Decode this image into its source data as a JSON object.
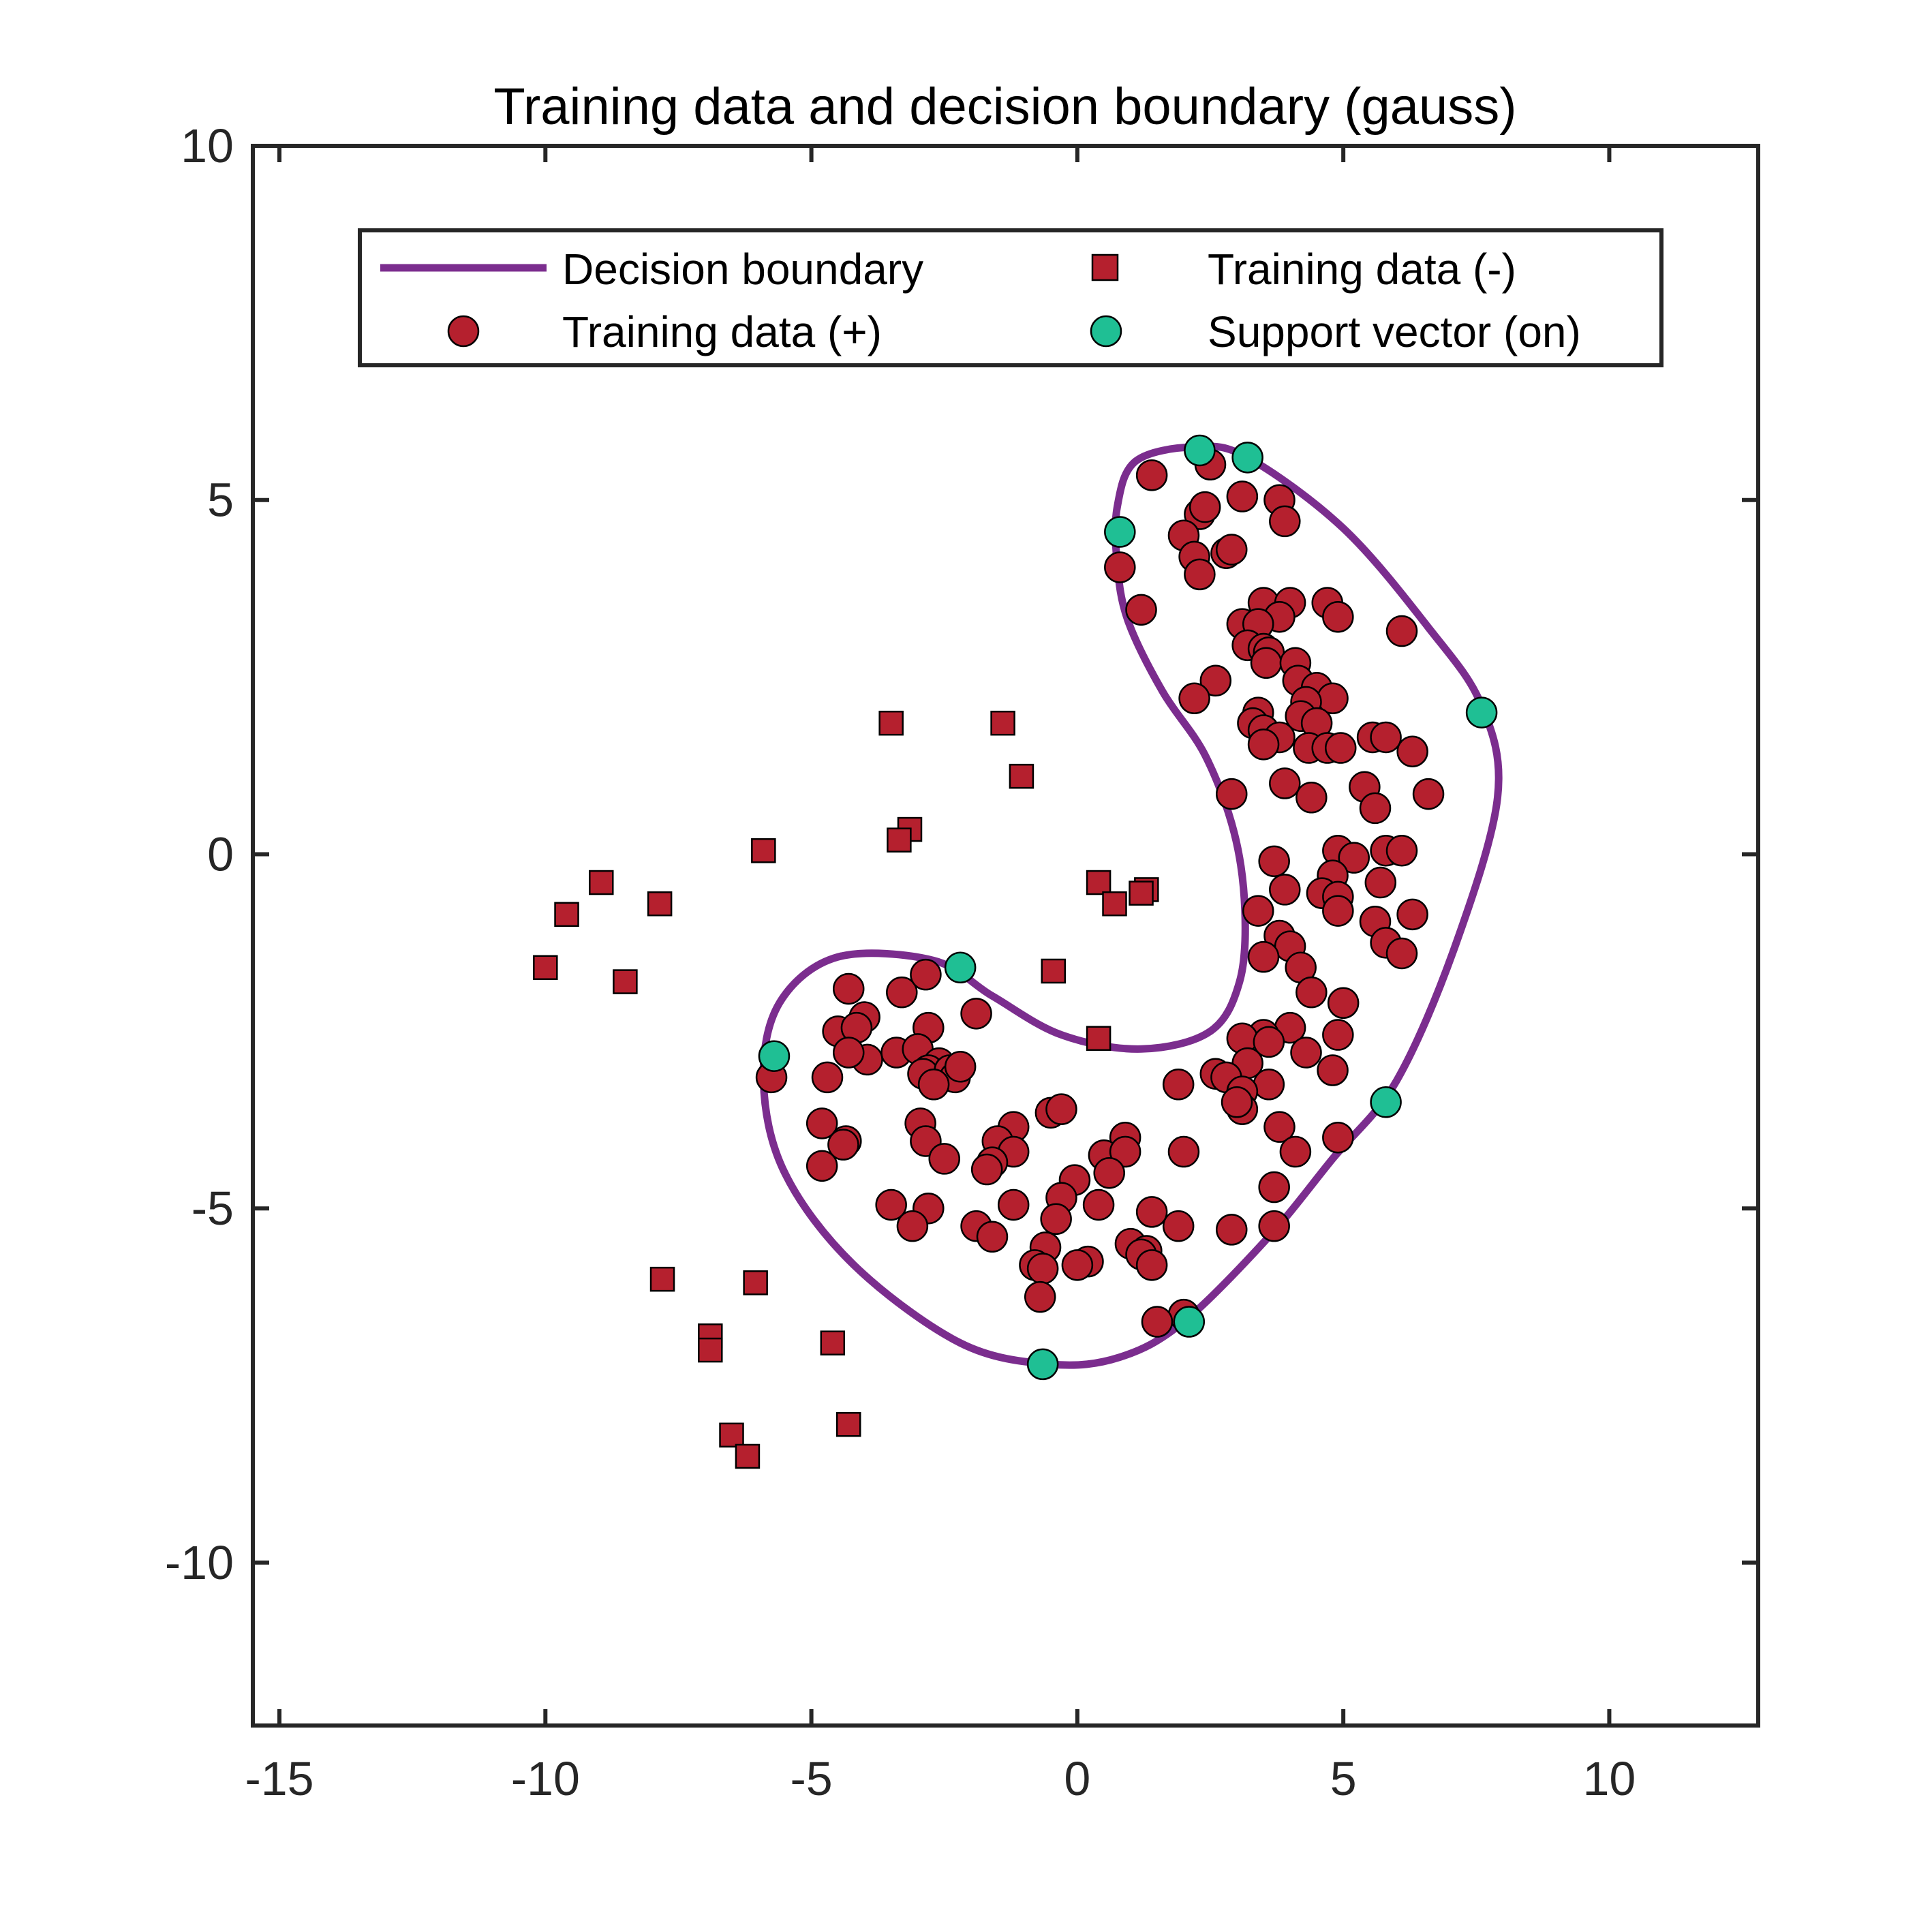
{
  "chart_data": {
    "type": "scatter",
    "title": "Training data and decision boundary (gauss)",
    "xlabel": "",
    "ylabel": "",
    "xlim": [
      -15.5,
      12.8
    ],
    "ylim": [
      -12.3,
      10
    ],
    "xticks": [
      -15,
      -10,
      -5,
      0,
      5,
      10
    ],
    "yticks": [
      -10,
      -5,
      0,
      5,
      10
    ],
    "grid": false,
    "legend_position": "top-center",
    "colors": {
      "boundary": "#7B2D8E",
      "positive": "#B5202E",
      "support": "#1FBF94",
      "negative": "#B5202E",
      "axis": "#262626",
      "text": "#262626"
    },
    "legend": {
      "boundary": "Decision boundary",
      "negative": "Training data (-)",
      "positive": "Training data (+)",
      "support": "Support vector (on)"
    },
    "series": [
      {
        "name": "Decision boundary",
        "type": "line",
        "points": [
          [
            2.2,
            5.75
          ],
          [
            1.1,
            5.55
          ],
          [
            0.75,
            4.9
          ],
          [
            0.75,
            4.1
          ],
          [
            0.95,
            3.3
          ],
          [
            1.6,
            2.3
          ],
          [
            2.4,
            1.4
          ],
          [
            2.95,
            0.3
          ],
          [
            3.15,
            -0.8
          ],
          [
            3.05,
            -1.8
          ],
          [
            2.5,
            -2.5
          ],
          [
            1.2,
            -2.75
          ],
          [
            -0.3,
            -2.55
          ],
          [
            -1.6,
            -2.0
          ],
          [
            -2.7,
            -1.5
          ],
          [
            -4.5,
            -1.45
          ],
          [
            -5.6,
            -2.1
          ],
          [
            -5.9,
            -3.2
          ],
          [
            -5.5,
            -4.5
          ],
          [
            -4.2,
            -5.8
          ],
          [
            -2.2,
            -6.9
          ],
          [
            -0.5,
            -7.2
          ],
          [
            0.8,
            -7.1
          ],
          [
            2.0,
            -6.6
          ],
          [
            3.6,
            -5.4
          ],
          [
            4.8,
            -4.3
          ],
          [
            6.0,
            -3.2
          ],
          [
            7.1,
            -1.3
          ],
          [
            7.9,
            0.8
          ],
          [
            7.6,
            2.1
          ],
          [
            6.6,
            3.2
          ],
          [
            5.0,
            4.6
          ],
          [
            3.2,
            5.6
          ],
          [
            2.2,
            5.75
          ]
        ]
      },
      {
        "name": "Training data (+)",
        "type": "scatter",
        "marker": "circle",
        "points": [
          [
            1.4,
            5.35
          ],
          [
            2.5,
            5.5
          ],
          [
            3.1,
            5.05
          ],
          [
            3.8,
            5.0
          ],
          [
            3.9,
            4.7
          ],
          [
            2.3,
            4.8
          ],
          [
            2.4,
            4.9
          ],
          [
            2.0,
            4.5
          ],
          [
            2.2,
            4.2
          ],
          [
            2.3,
            3.95
          ],
          [
            2.8,
            4.25
          ],
          [
            2.9,
            4.3
          ],
          [
            0.8,
            4.05
          ],
          [
            1.2,
            3.45
          ],
          [
            3.5,
            3.55
          ],
          [
            4.0,
            3.55
          ],
          [
            4.7,
            3.55
          ],
          [
            3.8,
            3.35
          ],
          [
            4.9,
            3.35
          ],
          [
            3.1,
            3.25
          ],
          [
            3.4,
            3.25
          ],
          [
            6.1,
            3.15
          ],
          [
            3.2,
            2.95
          ],
          [
            3.5,
            2.9
          ],
          [
            3.6,
            2.85
          ],
          [
            3.55,
            2.7
          ],
          [
            4.1,
            2.7
          ],
          [
            2.6,
            2.45
          ],
          [
            4.15,
            2.45
          ],
          [
            4.5,
            2.35
          ],
          [
            2.2,
            2.2
          ],
          [
            4.8,
            2.2
          ],
          [
            4.3,
            2.15
          ],
          [
            3.4,
            2.0
          ],
          [
            4.2,
            1.95
          ],
          [
            3.3,
            1.85
          ],
          [
            4.5,
            1.85
          ],
          [
            3.5,
            1.75
          ],
          [
            5.55,
            1.65
          ],
          [
            3.8,
            1.65
          ],
          [
            5.8,
            1.65
          ],
          [
            4.35,
            1.5
          ],
          [
            4.7,
            1.5
          ],
          [
            4.95,
            1.5
          ],
          [
            3.5,
            1.55
          ],
          [
            6.3,
            1.45
          ],
          [
            3.9,
            1.0
          ],
          [
            5.4,
            0.95
          ],
          [
            2.9,
            0.85
          ],
          [
            6.6,
            0.85
          ],
          [
            4.4,
            0.8
          ],
          [
            5.6,
            0.65
          ],
          [
            4.9,
            0.05
          ],
          [
            5.8,
            0.05
          ],
          [
            6.1,
            0.05
          ],
          [
            5.2,
            -0.05
          ],
          [
            3.7,
            -0.1
          ],
          [
            4.8,
            -0.3
          ],
          [
            5.7,
            -0.4
          ],
          [
            3.9,
            -0.5
          ],
          [
            4.6,
            -0.55
          ],
          [
            4.9,
            -0.6
          ],
          [
            3.4,
            -0.8
          ],
          [
            4.9,
            -0.8
          ],
          [
            6.3,
            -0.85
          ],
          [
            5.6,
            -0.95
          ],
          [
            3.8,
            -1.15
          ],
          [
            4.0,
            -1.3
          ],
          [
            5.8,
            -1.25
          ],
          [
            6.1,
            -1.4
          ],
          [
            3.5,
            -1.45
          ],
          [
            4.2,
            -1.6
          ],
          [
            4.4,
            -1.95
          ],
          [
            5.0,
            -2.1
          ],
          [
            4.0,
            -2.45
          ],
          [
            3.5,
            -2.55
          ],
          [
            4.9,
            -2.55
          ],
          [
            3.1,
            -2.6
          ],
          [
            3.6,
            -2.65
          ],
          [
            4.3,
            -2.8
          ],
          [
            3.2,
            -2.95
          ],
          [
            4.8,
            -3.05
          ],
          [
            2.6,
            -3.1
          ],
          [
            2.8,
            -3.15
          ],
          [
            1.9,
            -3.25
          ],
          [
            3.6,
            -3.25
          ],
          [
            3.1,
            -3.35
          ],
          [
            3.1,
            -3.6
          ],
          [
            3.0,
            -3.5
          ],
          [
            3.8,
            -3.85
          ],
          [
            4.9,
            -4.0
          ],
          [
            4.1,
            -4.2
          ],
          [
            2.0,
            -4.2
          ],
          [
            3.7,
            -4.7
          ],
          [
            3.7,
            -5.25
          ],
          [
            2.9,
            -5.3
          ],
          [
            1.9,
            -5.25
          ],
          [
            1.4,
            -5.05
          ],
          [
            1.0,
            -5.5
          ],
          [
            1.3,
            -5.6
          ],
          [
            1.2,
            -5.65
          ],
          [
            1.4,
            -5.8
          ],
          [
            2.0,
            -6.5
          ],
          [
            1.5,
            -6.6
          ],
          [
            -1.9,
            -2.25
          ],
          [
            -4.3,
            -1.9
          ],
          [
            -3.3,
            -1.95
          ],
          [
            -2.85,
            -1.7
          ],
          [
            -4.0,
            -2.3
          ],
          [
            -4.5,
            -2.5
          ],
          [
            -4.15,
            -2.45
          ],
          [
            -2.8,
            -2.45
          ],
          [
            -3.4,
            -2.8
          ],
          [
            -3.0,
            -2.75
          ],
          [
            -3.95,
            -2.9
          ],
          [
            -4.3,
            -2.8
          ],
          [
            -2.6,
            -2.95
          ],
          [
            -2.8,
            -3.05
          ],
          [
            -2.9,
            -3.1
          ],
          [
            -2.4,
            -3.05
          ],
          [
            -2.3,
            -3.15
          ],
          [
            -2.7,
            -3.25
          ],
          [
            -4.7,
            -3.15
          ],
          [
            -5.75,
            -3.15
          ],
          [
            -2.2,
            -3.0
          ],
          [
            -4.8,
            -3.8
          ],
          [
            -2.95,
            -3.8
          ],
          [
            -1.2,
            -3.85
          ],
          [
            -0.5,
            -3.65
          ],
          [
            -0.3,
            -3.6
          ],
          [
            -1.5,
            -4.05
          ],
          [
            -4.35,
            -4.05
          ],
          [
            -4.4,
            -4.1
          ],
          [
            -2.85,
            -4.05
          ],
          [
            -1.2,
            -4.2
          ],
          [
            -2.5,
            -4.3
          ],
          [
            -1.6,
            -4.35
          ],
          [
            -1.7,
            -4.45
          ],
          [
            -4.8,
            -4.4
          ],
          [
            0.9,
            -4.0
          ],
          [
            0.5,
            -4.25
          ],
          [
            0.9,
            -4.2
          ],
          [
            0.6,
            -4.5
          ],
          [
            -0.05,
            -4.6
          ],
          [
            -0.3,
            -4.85
          ],
          [
            0.4,
            -4.95
          ],
          [
            -1.2,
            -4.95
          ],
          [
            -2.8,
            -5.0
          ],
          [
            -3.5,
            -4.95
          ],
          [
            -3.1,
            -5.25
          ],
          [
            -0.4,
            -5.15
          ],
          [
            -1.9,
            -5.25
          ],
          [
            -1.6,
            -5.4
          ],
          [
            -0.6,
            -5.55
          ],
          [
            -0.8,
            -5.8
          ],
          [
            -0.65,
            -5.85
          ],
          [
            0.2,
            -5.75
          ],
          [
            0.0,
            -5.8
          ],
          [
            -0.7,
            -6.25
          ]
        ]
      },
      {
        "name": "Training data (-)",
        "type": "scatter",
        "marker": "square",
        "points": [
          [
            -3.5,
            1.85
          ],
          [
            -1.4,
            1.85
          ],
          [
            -1.05,
            1.1
          ],
          [
            -3.15,
            0.35
          ],
          [
            -3.35,
            0.2
          ],
          [
            -5.9,
            0.05
          ],
          [
            -8.95,
            -0.4
          ],
          [
            -9.6,
            -0.85
          ],
          [
            -7.85,
            -0.7
          ],
          [
            0.4,
            -0.4
          ],
          [
            1.3,
            -0.5
          ],
          [
            1.2,
            -0.55
          ],
          [
            0.7,
            -0.7
          ],
          [
            -10.0,
            -1.6
          ],
          [
            -8.5,
            -1.8
          ],
          [
            -0.45,
            -1.65
          ],
          [
            0.4,
            -2.6
          ],
          [
            -7.8,
            -6.0
          ],
          [
            -6.05,
            -6.05
          ],
          [
            -6.9,
            -6.8
          ],
          [
            -6.9,
            -7.0
          ],
          [
            -4.6,
            -6.9
          ],
          [
            -6.5,
            -8.2
          ],
          [
            -6.2,
            -8.5
          ],
          [
            -4.3,
            -8.05
          ]
        ]
      },
      {
        "name": "Support vector (on)",
        "type": "scatter",
        "marker": "circle",
        "points": [
          [
            2.3,
            5.7
          ],
          [
            3.2,
            5.6
          ],
          [
            0.8,
            4.55
          ],
          [
            7.6,
            2.0
          ],
          [
            -2.2,
            -1.6
          ],
          [
            -5.7,
            -2.85
          ],
          [
            5.8,
            -3.5
          ],
          [
            2.1,
            -6.6
          ],
          [
            -0.65,
            -7.2
          ]
        ]
      }
    ]
  }
}
